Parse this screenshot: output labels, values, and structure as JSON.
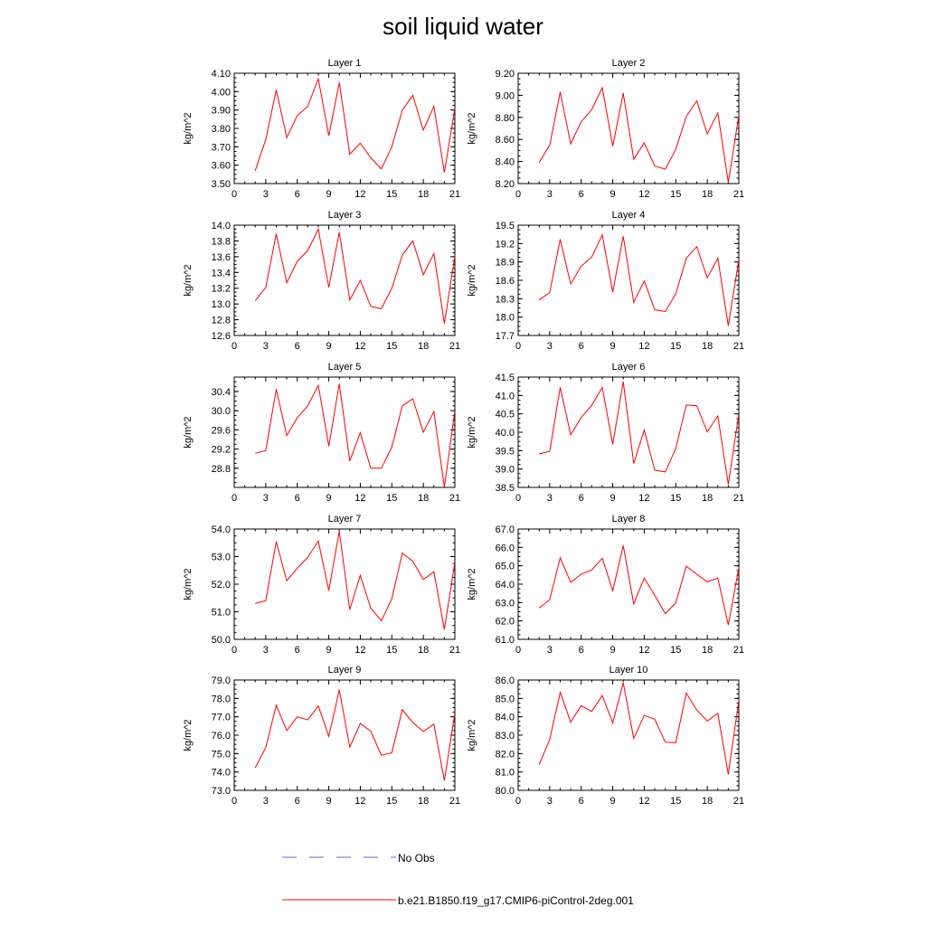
{
  "title": "soil liquid water",
  "legend": [
    {
      "label": "No Obs",
      "color": "#6666cc",
      "style": "dashed"
    },
    {
      "label": "b.e21.B1850.f19_g17.CMIP6-piControl-2deg.001",
      "color": "#ff0000",
      "style": "solid"
    }
  ],
  "chart_data": [
    {
      "type": "line",
      "title": "Layer 1",
      "ylabel": "kg/m^2",
      "xlim": [
        0,
        21
      ],
      "ylim": [
        3.5,
        4.1
      ],
      "xticks": [
        0,
        3,
        6,
        9,
        12,
        15,
        18,
        21
      ],
      "yticks": [
        3.5,
        3.6,
        3.7,
        3.8,
        3.9,
        4.0,
        4.1
      ],
      "ytick_labels": [
        "3.50",
        "3.60",
        "3.70",
        "3.80",
        "3.90",
        "4.00",
        "4.10"
      ],
      "x": [
        2,
        3,
        4,
        5,
        6,
        7,
        8,
        9,
        10,
        11,
        12,
        13,
        14,
        15,
        16,
        17,
        18,
        19,
        20,
        21
      ],
      "values": [
        3.57,
        3.74,
        4.01,
        3.75,
        3.87,
        3.92,
        4.07,
        3.76,
        4.05,
        3.66,
        3.72,
        3.64,
        3.58,
        3.7,
        3.9,
        3.98,
        3.79,
        3.92,
        3.56,
        3.91
      ]
    },
    {
      "type": "line",
      "title": "Layer 2",
      "ylabel": "kg/m^2",
      "xlim": [
        0,
        21
      ],
      "ylim": [
        8.2,
        9.2
      ],
      "xticks": [
        0,
        3,
        6,
        9,
        12,
        15,
        18,
        21
      ],
      "yticks": [
        8.2,
        8.4,
        8.6,
        8.8,
        9.0,
        9.2
      ],
      "ytick_labels": [
        "8.20",
        "8.40",
        "8.60",
        "8.80",
        "9.00",
        "9.20"
      ],
      "x": [
        2,
        3,
        4,
        5,
        6,
        7,
        8,
        9,
        10,
        11,
        12,
        13,
        14,
        15,
        16,
        17,
        18,
        19,
        20,
        21
      ],
      "values": [
        8.39,
        8.55,
        9.03,
        8.56,
        8.76,
        8.87,
        9.07,
        8.54,
        9.02,
        8.42,
        8.57,
        8.36,
        8.33,
        8.51,
        8.81,
        8.95,
        8.65,
        8.84,
        8.21,
        8.82
      ]
    },
    {
      "type": "line",
      "title": "Layer 3",
      "ylabel": "kg/m^2",
      "xlim": [
        0,
        21
      ],
      "ylim": [
        12.6,
        14.0
      ],
      "xticks": [
        0,
        3,
        6,
        9,
        12,
        15,
        18,
        21
      ],
      "yticks": [
        12.6,
        12.8,
        13.0,
        13.2,
        13.4,
        13.6,
        13.8,
        14.0
      ],
      "ytick_labels": [
        "12.6",
        "12.8",
        "13.0",
        "13.2",
        "13.4",
        "13.6",
        "13.8",
        "14.0"
      ],
      "x": [
        2,
        3,
        4,
        5,
        6,
        7,
        8,
        9,
        10,
        11,
        12,
        13,
        14,
        15,
        16,
        17,
        18,
        19,
        20,
        21
      ],
      "values": [
        13.04,
        13.21,
        13.89,
        13.27,
        13.54,
        13.68,
        13.95,
        13.21,
        13.91,
        13.05,
        13.3,
        12.97,
        12.94,
        13.2,
        13.62,
        13.8,
        13.37,
        13.64,
        12.75,
        13.61
      ]
    },
    {
      "type": "line",
      "title": "Layer 4",
      "ylabel": "kg/m^2",
      "xlim": [
        0,
        21
      ],
      "ylim": [
        17.7,
        19.5
      ],
      "xticks": [
        0,
        3,
        6,
        9,
        12,
        15,
        18,
        21
      ],
      "yticks": [
        17.7,
        18.0,
        18.3,
        18.6,
        18.9,
        19.2,
        19.5
      ],
      "ytick_labels": [
        "17.7",
        "18.0",
        "18.3",
        "18.6",
        "18.9",
        "19.2",
        "19.5"
      ],
      "x": [
        2,
        3,
        4,
        5,
        6,
        7,
        8,
        9,
        10,
        11,
        12,
        13,
        14,
        15,
        16,
        17,
        18,
        19,
        20,
        21
      ],
      "values": [
        18.28,
        18.4,
        19.27,
        18.54,
        18.83,
        18.98,
        19.34,
        18.41,
        19.32,
        18.24,
        18.59,
        18.12,
        18.09,
        18.38,
        18.96,
        19.15,
        18.64,
        18.96,
        17.86,
        18.94
      ]
    },
    {
      "type": "line",
      "title": "Layer 5",
      "ylabel": "kg/m^2",
      "xlim": [
        0,
        21
      ],
      "ylim": [
        28.4,
        30.7
      ],
      "xticks": [
        0,
        3,
        6,
        9,
        12,
        15,
        18,
        21
      ],
      "yticks": [
        28.8,
        29.2,
        29.6,
        30.0,
        30.4
      ],
      "ytick_labels": [
        "28.8",
        "29.2",
        "29.6",
        "30.0",
        "30.4"
      ],
      "x": [
        2,
        3,
        4,
        5,
        6,
        7,
        8,
        9,
        10,
        11,
        12,
        13,
        14,
        15,
        16,
        17,
        18,
        19,
        20,
        21
      ],
      "values": [
        29.11,
        29.17,
        30.45,
        29.48,
        29.85,
        30.1,
        30.53,
        29.26,
        30.56,
        28.95,
        29.54,
        28.8,
        28.8,
        29.24,
        30.1,
        30.25,
        29.55,
        29.98,
        28.4,
        30.0
      ]
    },
    {
      "type": "line",
      "title": "Layer 6",
      "ylabel": "kg/m^2",
      "xlim": [
        0,
        21
      ],
      "ylim": [
        38.5,
        41.5
      ],
      "xticks": [
        0,
        3,
        6,
        9,
        12,
        15,
        18,
        21
      ],
      "yticks": [
        38.5,
        39.0,
        39.5,
        40.0,
        40.5,
        41.0,
        41.5
      ],
      "ytick_labels": [
        "38.5",
        "39.0",
        "39.5",
        "40.0",
        "40.5",
        "41.0",
        "41.5"
      ],
      "x": [
        2,
        3,
        4,
        5,
        6,
        7,
        8,
        9,
        10,
        11,
        12,
        13,
        14,
        15,
        16,
        17,
        18,
        19,
        20,
        21
      ],
      "values": [
        39.41,
        39.48,
        41.22,
        39.93,
        40.4,
        40.73,
        41.22,
        39.67,
        41.38,
        39.15,
        40.06,
        38.97,
        38.92,
        39.56,
        40.74,
        40.72,
        40.01,
        40.44,
        38.58,
        40.5
      ]
    },
    {
      "type": "line",
      "title": "Layer 7",
      "ylabel": "kg/m^2",
      "xlim": [
        0,
        21
      ],
      "ylim": [
        50.0,
        54.0
      ],
      "xticks": [
        0,
        3,
        6,
        9,
        12,
        15,
        18,
        21
      ],
      "yticks": [
        50.0,
        51.0,
        52.0,
        53.0,
        54.0
      ],
      "ytick_labels": [
        "50.0",
        "51.0",
        "52.0",
        "53.0",
        "54.0"
      ],
      "x": [
        2,
        3,
        4,
        5,
        6,
        7,
        8,
        9,
        10,
        11,
        12,
        13,
        14,
        15,
        16,
        17,
        18,
        19,
        20,
        21
      ],
      "values": [
        51.3,
        51.4,
        53.55,
        52.12,
        52.58,
        52.97,
        53.56,
        51.77,
        53.91,
        51.08,
        52.32,
        51.13,
        50.67,
        51.47,
        53.13,
        52.83,
        52.17,
        52.45,
        50.36,
        52.8
      ]
    },
    {
      "type": "line",
      "title": "Layer 8",
      "ylabel": "kg/m^2",
      "xlim": [
        0,
        21
      ],
      "ylim": [
        61.0,
        67.0
      ],
      "xticks": [
        0,
        3,
        6,
        9,
        12,
        15,
        18,
        21
      ],
      "yticks": [
        61.0,
        62.0,
        63.0,
        64.0,
        65.0,
        66.0,
        67.0
      ],
      "ytick_labels": [
        "61.0",
        "62.0",
        "63.0",
        "64.0",
        "65.0",
        "66.0",
        "67.0"
      ],
      "x": [
        2,
        3,
        4,
        5,
        6,
        7,
        8,
        9,
        10,
        11,
        12,
        13,
        14,
        15,
        16,
        17,
        18,
        19,
        20,
        21
      ],
      "values": [
        62.7,
        63.16,
        65.44,
        64.1,
        64.54,
        64.77,
        65.41,
        63.64,
        66.1,
        62.93,
        64.34,
        63.4,
        62.4,
        62.98,
        64.98,
        64.54,
        64.13,
        64.33,
        61.78,
        64.9
      ]
    },
    {
      "type": "line",
      "title": "Layer 9",
      "ylabel": "kg/m^2",
      "xlim": [
        0,
        21
      ],
      "ylim": [
        73.0,
        79.0
      ],
      "xticks": [
        0,
        3,
        6,
        9,
        12,
        15,
        18,
        21
      ],
      "yticks": [
        73.0,
        74.0,
        75.0,
        76.0,
        77.0,
        78.0,
        79.0
      ],
      "ytick_labels": [
        "73.0",
        "74.0",
        "75.0",
        "76.0",
        "77.0",
        "78.0",
        "79.0"
      ],
      "x": [
        2,
        3,
        4,
        5,
        6,
        7,
        8,
        9,
        10,
        11,
        12,
        13,
        14,
        15,
        16,
        17,
        18,
        19,
        20,
        21
      ],
      "values": [
        74.23,
        75.33,
        77.63,
        76.25,
        77.0,
        76.83,
        77.59,
        75.93,
        78.47,
        75.35,
        76.63,
        76.22,
        74.91,
        75.05,
        77.38,
        76.69,
        76.2,
        76.6,
        73.53,
        77.2
      ]
    },
    {
      "type": "line",
      "title": "Layer 10",
      "ylabel": "kg/m^2",
      "xlim": [
        0,
        21
      ],
      "ylim": [
        80.0,
        86.0
      ],
      "xticks": [
        0,
        3,
        6,
        9,
        12,
        15,
        18,
        21
      ],
      "yticks": [
        80.0,
        81.0,
        82.0,
        83.0,
        84.0,
        85.0,
        86.0
      ],
      "ytick_labels": [
        "80.0",
        "81.0",
        "82.0",
        "83.0",
        "84.0",
        "85.0",
        "86.0"
      ],
      "x": [
        2,
        3,
        4,
        5,
        6,
        7,
        8,
        9,
        10,
        11,
        12,
        13,
        14,
        15,
        16,
        17,
        18,
        19,
        20,
        21
      ],
      "values": [
        81.4,
        82.76,
        85.33,
        83.71,
        84.61,
        84.29,
        85.16,
        83.67,
        85.85,
        82.83,
        84.07,
        83.87,
        82.62,
        82.59,
        85.29,
        84.37,
        83.77,
        84.18,
        80.87,
        84.9
      ]
    }
  ]
}
